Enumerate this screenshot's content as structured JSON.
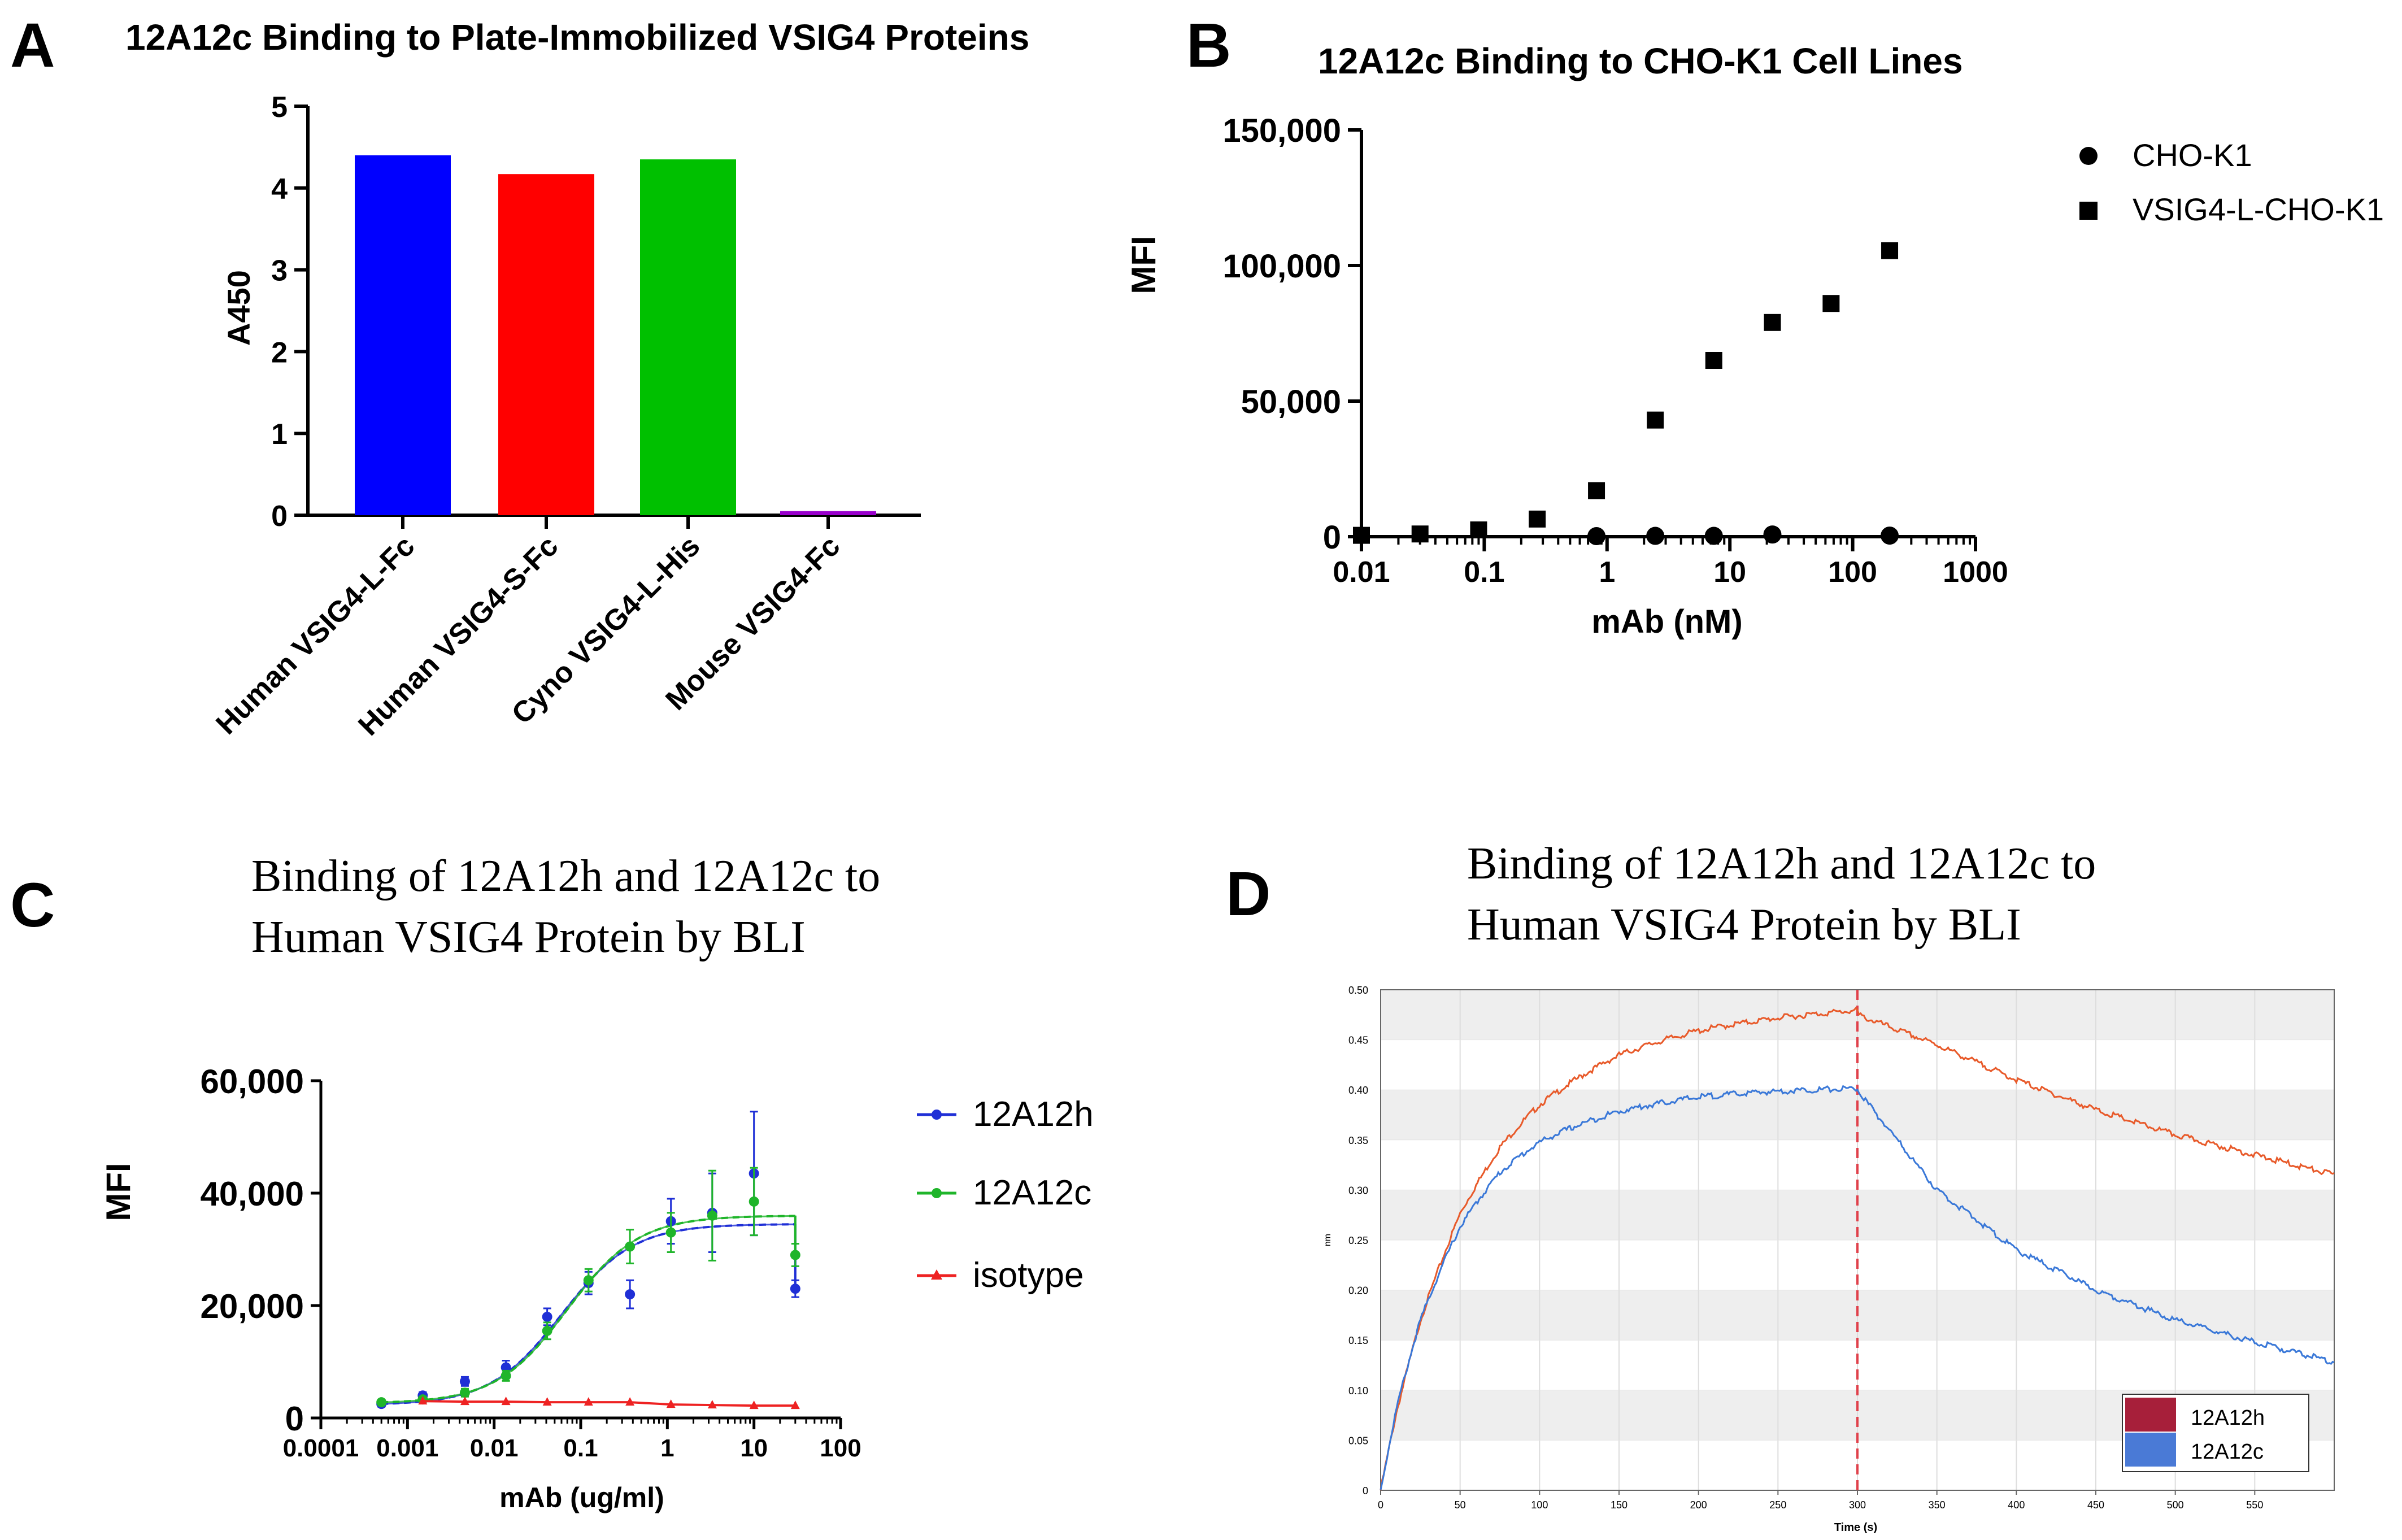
{
  "panels": {
    "A": {
      "letter": "A"
    },
    "B": {
      "letter": "B"
    },
    "C": {
      "letter": "C"
    },
    "D": {
      "letter": "D"
    }
  },
  "colors": {
    "blue": "#0000ff",
    "red": "#ff0000",
    "green": "#00c000",
    "purple": "#9900cc",
    "c_blue": "#1f2fd6",
    "c_green": "#1fb52a",
    "c_red": "#ee2222",
    "d_orange": "#e85a2a",
    "d_blue": "#3a78d8",
    "d_legend_red": "#a71f3a",
    "d_legend_blue": "#4a7ad6",
    "d_vline": "#e0404a",
    "d_band": "#eeeeee"
  },
  "chart_data": [
    {
      "panel": "A",
      "type": "bar",
      "title": "12A12c Binding to Plate-Immobilized VSIG4 Proteins",
      "xlabel": "",
      "ylabel": "A450",
      "ylim": [
        0,
        5
      ],
      "yticks": [
        "0",
        "1",
        "2",
        "3",
        "4",
        "5"
      ],
      "categories": [
        "Human VSIG4-L-Fc",
        "Human VSIG4-S-Fc",
        "Cyno VSIG4-L-His",
        "Mouse VSIG4-Fc"
      ],
      "values": [
        4.4,
        4.17,
        4.35,
        0.05
      ]
    },
    {
      "panel": "B",
      "type": "scatter",
      "title": "12A12c Binding to CHO-K1 Cell Lines",
      "xlabel": "mAb (nM)",
      "ylabel": "MFI",
      "xscale": "log",
      "xlim": [
        0.01,
        1000
      ],
      "ylim": [
        0,
        150000
      ],
      "xticks": [
        "0.01",
        "0.1",
        "1",
        "10",
        "100",
        "1000"
      ],
      "yticks": [
        "0",
        "50,000",
        "100,000",
        "150,000"
      ],
      "series": [
        {
          "name": "CHO-K1",
          "marker": "circle",
          "x": [
            0.82,
            2.47,
            7.4,
            22.2,
            200
          ],
          "y": [
            200,
            300,
            300,
            800,
            400
          ]
        },
        {
          "name": "VSIG4-L-CHO-K1",
          "marker": "square",
          "x": [
            0.01,
            0.03,
            0.09,
            0.27,
            0.82,
            2.47,
            7.4,
            22.2,
            66.7,
            200
          ],
          "y": [
            500,
            1000,
            2500,
            6500,
            17000,
            43000,
            65000,
            79000,
            86000,
            105500
          ]
        }
      ]
    },
    {
      "panel": "C",
      "type": "line",
      "title": "Binding of 12A12h and 12A12c to\nHuman VSIG4 Protein by BLI",
      "title_lines": [
        "Binding of 12A12h and 12A12c to",
        "Human VSIG4 Protein by BLI"
      ],
      "xlabel": "mAb (ug/ml)",
      "ylabel": "MFI",
      "xscale": "log",
      "xlim": [
        0.0001,
        100
      ],
      "ylim": [
        0,
        60000
      ],
      "xticks": [
        "0.0001",
        "0.001",
        "0.01",
        "0.1",
        "1",
        "10",
        "100"
      ],
      "yticks": [
        "0",
        "20,000",
        "40,000",
        "60,000"
      ],
      "series": [
        {
          "name": "12A12h",
          "x": [
            0.0005,
            0.0015,
            0.0046,
            0.0137,
            0.041,
            0.123,
            0.37,
            1.1,
            3.3,
            10,
            30
          ],
          "y": [
            2500,
            4000,
            6500,
            9000,
            18000,
            24000,
            22000,
            35000,
            36500,
            43500,
            23000
          ],
          "err": [
            500,
            600,
            800,
            1200,
            1500,
            2000,
            2500,
            4000,
            7000,
            11000,
            1500
          ]
        },
        {
          "name": "12A12c",
          "x": [
            0.0005,
            0.0015,
            0.0046,
            0.0137,
            0.041,
            0.123,
            0.37,
            1.1,
            3.3,
            10,
            30
          ],
          "y": [
            2800,
            3300,
            4500,
            7500,
            15500,
            24500,
            30500,
            33000,
            36000,
            38500,
            29000
          ],
          "err": [
            400,
            500,
            700,
            900,
            1500,
            2000,
            3000,
            3500,
            8000,
            6000,
            2000
          ]
        },
        {
          "name": "isotype",
          "x": [
            0.0015,
            0.0046,
            0.0137,
            0.041,
            0.123,
            0.37,
            1.1,
            3.3,
            10,
            30
          ],
          "y": [
            3000,
            2900,
            2900,
            2800,
            2800,
            2800,
            2400,
            2300,
            2200,
            2200
          ]
        }
      ]
    },
    {
      "panel": "D",
      "type": "line",
      "title": "Binding of 12A12h and 12A12c to\nHuman VSIG4 Protein by BLI",
      "title_lines": [
        "Binding of 12A12h and 12A12c to",
        "Human VSIG4 Protein by BLI"
      ],
      "xlabel": "Time (s)",
      "ylabel": "nm",
      "xlim": [
        0,
        600
      ],
      "ylim": [
        0,
        0.5
      ],
      "xticks": [
        "0",
        "50",
        "100",
        "150",
        "200",
        "250",
        "300",
        "350",
        "400",
        "450",
        "500",
        "550"
      ],
      "yticks": [
        "0",
        "0.05",
        "0.10",
        "0.15",
        "0.20",
        "0.25",
        "0.30",
        "0.35",
        "0.40",
        "0.45",
        "0.50"
      ],
      "vline_x": 300,
      "series": [
        {
          "name": "12A12h",
          "x": [
            0,
            10,
            25,
            50,
            75,
            100,
            150,
            200,
            250,
            300,
            350,
            400,
            450,
            500,
            550,
            600
          ],
          "y": [
            0,
            0.09,
            0.19,
            0.3,
            0.36,
            0.395,
            0.435,
            0.455,
            0.467,
            0.475,
            0.445,
            0.41,
            0.38,
            0.355,
            0.335,
            0.315
          ]
        },
        {
          "name": "12A12c",
          "x": [
            0,
            10,
            25,
            50,
            75,
            100,
            150,
            200,
            250,
            300,
            320,
            350,
            400,
            450,
            500,
            550,
            600
          ],
          "y": [
            0,
            0.09,
            0.18,
            0.27,
            0.32,
            0.345,
            0.372,
            0.388,
            0.395,
            0.399,
            0.36,
            0.3,
            0.24,
            0.2,
            0.17,
            0.148,
            0.128
          ]
        }
      ],
      "legend": [
        "12A12h",
        "12A12c"
      ]
    }
  ]
}
